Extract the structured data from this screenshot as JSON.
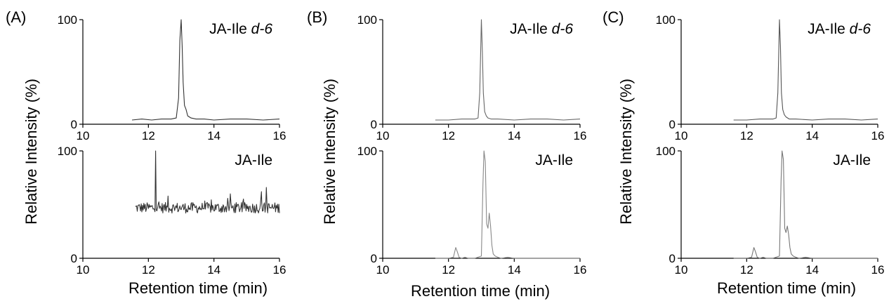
{
  "figure": {
    "panels": [
      {
        "letter": "(A)",
        "ylabel": "Relative Intensity (%)",
        "xlabel": "Retention time (min)"
      },
      {
        "letter": "(B)",
        "ylabel": "Relative Intensity (%)",
        "xlabel": "Retention time (min)"
      },
      {
        "letter": "(C)",
        "ylabel": "Relative Intensity (%)",
        "xlabel": "Retention time (min)"
      }
    ]
  },
  "chart_data": [
    {
      "panel": "(A)",
      "position": "top",
      "type": "line",
      "title_plain": "JA-Ile ",
      "title_italic": "d-6",
      "xlim": [
        10,
        16
      ],
      "ylim": [
        0,
        100
      ],
      "xticks": [
        10,
        12,
        14,
        16
      ],
      "yticks": [
        0,
        100
      ],
      "ylabel": "Relative Intensity (%)",
      "series": [
        {
          "color": "#333333",
          "x": [
            11.5,
            11.8,
            12.1,
            12.4,
            12.7,
            12.85,
            12.92,
            12.96,
            13.0,
            13.03,
            13.06,
            13.1,
            13.15,
            13.2,
            13.3,
            13.45,
            13.7,
            14.0,
            14.5,
            15.0,
            15.5,
            16.0
          ],
          "y": [
            4,
            5,
            4,
            5,
            5,
            6,
            25,
            80,
            100,
            75,
            40,
            18,
            14,
            8,
            6,
            5,
            5,
            4,
            5,
            5,
            4,
            5
          ]
        }
      ]
    },
    {
      "panel": "(A)",
      "position": "bottom",
      "type": "line",
      "title_plain": "JA-Ile",
      "xlim": [
        10,
        16
      ],
      "ylim": [
        0,
        100
      ],
      "xticks": [
        10,
        12,
        14,
        16
      ],
      "yticks": [
        0,
        100
      ],
      "xlabel": "Retention time (min)",
      "series": [
        {
          "color": "#333333",
          "noise": true,
          "baseline": 47,
          "amplitude": 5,
          "x_start": 11.6,
          "x_end": 16.0,
          "spikes": [
            {
              "x": 12.22,
              "y": 100
            },
            {
              "x": 14.5,
              "y": 60
            },
            {
              "x": 15.45,
              "y": 62
            },
            {
              "x": 15.6,
              "y": 66
            },
            {
              "x": 12.6,
              "y": 58
            }
          ]
        }
      ]
    },
    {
      "panel": "(B)",
      "position": "top",
      "type": "line",
      "title_plain": "JA-Ile ",
      "title_italic": "d-6",
      "xlim": [
        10,
        16
      ],
      "ylim": [
        0,
        100
      ],
      "xticks": [
        10,
        12,
        14,
        16
      ],
      "yticks": [
        0,
        100
      ],
      "ylabel": "Relative Intensity (%)",
      "series": [
        {
          "color": "#666666",
          "x": [
            11.6,
            12.0,
            12.4,
            12.8,
            12.9,
            12.95,
            13.0,
            13.03,
            13.06,
            13.1,
            13.15,
            13.2,
            13.3,
            13.5,
            14.0,
            14.5,
            15.0,
            15.5,
            16.0
          ],
          "y": [
            4,
            4,
            5,
            5,
            6,
            30,
            100,
            70,
            30,
            12,
            8,
            6,
            5,
            5,
            4,
            5,
            5,
            4,
            5
          ]
        }
      ]
    },
    {
      "panel": "(B)",
      "position": "bottom",
      "type": "line",
      "title_plain": "JA-Ile",
      "xlim": [
        10,
        16
      ],
      "ylim": [
        0,
        100
      ],
      "xticks": [
        10,
        12,
        14,
        16
      ],
      "yticks": [
        0,
        100
      ],
      "ylabel": "Relative Intensity (%)",
      "xlabel": "Retention time (min)",
      "series": [
        {
          "color": "#888888",
          "x": [
            11.6,
            12.0,
            12.15,
            12.22,
            12.27,
            12.32,
            12.4,
            12.5,
            12.6,
            12.8,
            13.0,
            13.05,
            13.08,
            13.12,
            13.16,
            13.2,
            13.24,
            13.28,
            13.32,
            13.36,
            13.42,
            13.5,
            13.6,
            13.8,
            14.0,
            14.5,
            15.0,
            15.5,
            16.0
          ],
          "y": [
            0,
            0,
            1,
            10,
            6,
            1,
            0,
            1,
            0,
            0,
            2,
            70,
            100,
            90,
            32,
            28,
            42,
            30,
            12,
            4,
            2,
            1,
            0,
            1,
            0,
            0,
            0,
            0,
            0
          ]
        }
      ]
    },
    {
      "panel": "(C)",
      "position": "top",
      "type": "line",
      "title_plain": "JA-Ile ",
      "title_italic": "d-6",
      "xlim": [
        10,
        16
      ],
      "ylim": [
        0,
        100
      ],
      "xticks": [
        10,
        12,
        14,
        16
      ],
      "yticks": [
        0,
        100
      ],
      "ylabel": "Relative Intensity (%)",
      "series": [
        {
          "color": "#555555",
          "x": [
            11.6,
            12.0,
            12.4,
            12.8,
            12.9,
            12.95,
            13.0,
            13.03,
            13.06,
            13.1,
            13.15,
            13.2,
            13.3,
            13.5,
            14.0,
            14.5,
            15.0,
            15.5,
            16.0
          ],
          "y": [
            4,
            4,
            5,
            5,
            6,
            30,
            100,
            75,
            30,
            14,
            9,
            7,
            5,
            5,
            4,
            5,
            5,
            4,
            5
          ]
        }
      ]
    },
    {
      "panel": "(C)",
      "position": "bottom",
      "type": "line",
      "title_plain": "JA-Ile",
      "xlim": [
        10,
        16
      ],
      "ylim": [
        0,
        100
      ],
      "xticks": [
        10,
        12,
        14,
        16
      ],
      "yticks": [
        0,
        100
      ],
      "ylabel": "Relative Intensity (%)",
      "xlabel": "Retention time (min)",
      "series": [
        {
          "color": "#777777",
          "x": [
            11.6,
            12.0,
            12.15,
            12.22,
            12.27,
            12.32,
            12.4,
            12.5,
            12.6,
            12.8,
            13.0,
            13.05,
            13.08,
            13.12,
            13.16,
            13.2,
            13.24,
            13.28,
            13.32,
            13.36,
            13.42,
            13.5,
            13.6,
            13.8,
            14.0,
            14.5,
            15.0,
            15.5,
            16.0
          ],
          "y": [
            0,
            0,
            1,
            10,
            6,
            1,
            0,
            1,
            0,
            0,
            2,
            72,
            100,
            92,
            28,
            24,
            30,
            22,
            10,
            4,
            2,
            1,
            0,
            1,
            0,
            0,
            0,
            0,
            0
          ]
        }
      ]
    }
  ]
}
